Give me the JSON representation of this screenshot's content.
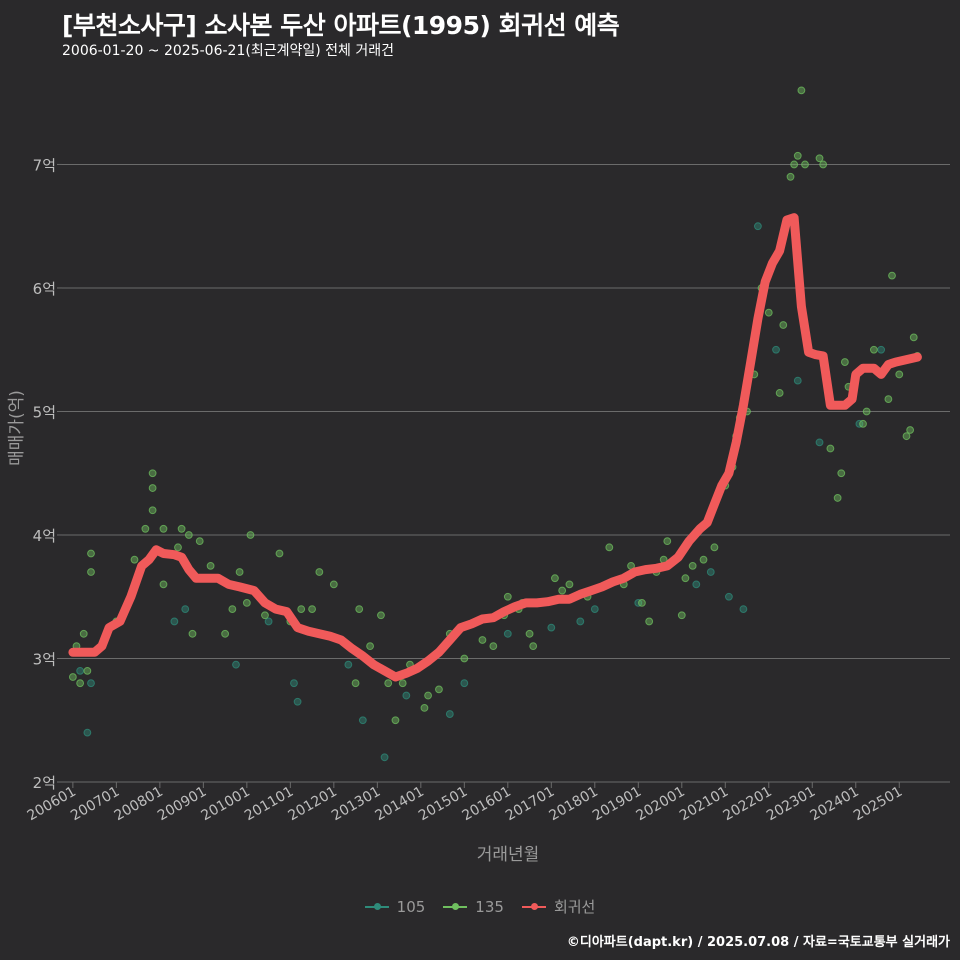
{
  "header": {
    "title": "[부천소사구] 소사본 두산 아파트(1995) 회귀선 예측",
    "subtitle": "2006-01-20 ~ 2025-06-21(최근계약일) 전체 거래건"
  },
  "footer": {
    "credit": "©디아파트(dapt.kr) / 2025.07.08 / 자료=국토교통부 실거래가"
  },
  "colors": {
    "background": "#2a292b",
    "grid": "#6b6b6b",
    "s105": "#2e8b7a",
    "s135": "#6fbf5f",
    "regression": "#f05a5a"
  },
  "chart_data": {
    "type": "scatter",
    "xlabel": "거래년월",
    "ylabel": "매매가(억)",
    "ylim": [
      2,
      7.7
    ],
    "xlim": [
      "2005-10",
      "2026-03"
    ],
    "y_ticks": [
      2,
      3,
      4,
      5,
      6,
      7
    ],
    "y_tick_labels": [
      "2억",
      "3억",
      "4억",
      "5억",
      "6억",
      "7억"
    ],
    "x_ticks": [
      "2006-01",
      "2007-01",
      "2008-01",
      "2009-01",
      "2010-01",
      "2011-01",
      "2012-01",
      "2013-01",
      "2014-01",
      "2015-01",
      "2016-01",
      "2017-01",
      "2018-01",
      "2019-01",
      "2020-01",
      "2021-01",
      "2022-01",
      "2023-01",
      "2024-01",
      "2025-01"
    ],
    "x_tick_labels": [
      "200601",
      "200701",
      "200801",
      "200901",
      "201001",
      "201101",
      "201201",
      "201301",
      "201401",
      "201501",
      "201601",
      "201701",
      "201801",
      "201901",
      "202001",
      "202101",
      "202201",
      "202301",
      "202401",
      "202501"
    ],
    "grid": true,
    "legend_position": "bottom",
    "series": [
      {
        "name": "105",
        "kind": "scatter",
        "points": [
          [
            "2006-03",
            2.9
          ],
          [
            "2006-05",
            2.4
          ],
          [
            "2006-06",
            2.8
          ],
          [
            "2008-05",
            3.3
          ],
          [
            "2008-08",
            3.4
          ],
          [
            "2009-10",
            2.95
          ],
          [
            "2010-07",
            3.3
          ],
          [
            "2011-03",
            2.65
          ],
          [
            "2011-02",
            2.8
          ],
          [
            "2012-05",
            2.95
          ],
          [
            "2012-09",
            2.5
          ],
          [
            "2013-03",
            2.2
          ],
          [
            "2013-09",
            2.7
          ],
          [
            "2014-09",
            2.55
          ],
          [
            "2015-01",
            2.8
          ],
          [
            "2016-01",
            3.2
          ],
          [
            "2017-01",
            3.25
          ],
          [
            "2017-09",
            3.3
          ],
          [
            "2018-01",
            3.4
          ],
          [
            "2019-01",
            3.45
          ],
          [
            "2020-05",
            3.6
          ],
          [
            "2020-09",
            3.7
          ],
          [
            "2021-02",
            3.5
          ],
          [
            "2021-06",
            3.4
          ],
          [
            "2021-10",
            6.5
          ],
          [
            "2022-03",
            5.5
          ],
          [
            "2022-09",
            5.25
          ],
          [
            "2023-03",
            4.75
          ],
          [
            "2024-02",
            4.9
          ],
          [
            "2024-08",
            5.5
          ]
        ]
      },
      {
        "name": "135",
        "kind": "scatter",
        "points": [
          [
            "2006-01",
            2.85
          ],
          [
            "2006-02",
            3.1
          ],
          [
            "2006-03",
            2.8
          ],
          [
            "2006-04",
            3.2
          ],
          [
            "2006-05",
            2.9
          ],
          [
            "2006-06",
            3.7
          ],
          [
            "2006-06",
            3.85
          ],
          [
            "2007-01",
            3.3
          ],
          [
            "2007-06",
            3.8
          ],
          [
            "2007-09",
            4.05
          ],
          [
            "2007-11",
            4.2
          ],
          [
            "2007-11",
            4.5
          ],
          [
            "2007-11",
            4.38
          ],
          [
            "2008-02",
            3.6
          ],
          [
            "2008-02",
            4.05
          ],
          [
            "2008-06",
            3.9
          ],
          [
            "2008-07",
            4.05
          ],
          [
            "2008-09",
            4.0
          ],
          [
            "2008-10",
            3.2
          ],
          [
            "2008-12",
            3.95
          ],
          [
            "2009-03",
            3.75
          ],
          [
            "2009-07",
            3.2
          ],
          [
            "2009-09",
            3.4
          ],
          [
            "2009-11",
            3.7
          ],
          [
            "2010-01",
            3.45
          ],
          [
            "2010-02",
            4.0
          ],
          [
            "2010-06",
            3.35
          ],
          [
            "2010-10",
            3.85
          ],
          [
            "2011-01",
            3.3
          ],
          [
            "2011-04",
            3.4
          ],
          [
            "2011-07",
            3.4
          ],
          [
            "2011-09",
            3.7
          ],
          [
            "2012-01",
            3.6
          ],
          [
            "2012-03",
            3.15
          ],
          [
            "2012-07",
            2.8
          ],
          [
            "2012-08",
            3.4
          ],
          [
            "2012-11",
            3.1
          ],
          [
            "2013-02",
            3.35
          ],
          [
            "2013-04",
            2.8
          ],
          [
            "2013-06",
            2.5
          ],
          [
            "2013-08",
            2.8
          ],
          [
            "2013-10",
            2.95
          ],
          [
            "2014-02",
            2.6
          ],
          [
            "2014-03",
            2.7
          ],
          [
            "2014-06",
            2.75
          ],
          [
            "2014-09",
            3.2
          ],
          [
            "2015-01",
            3.0
          ],
          [
            "2015-06",
            3.15
          ],
          [
            "2015-09",
            3.1
          ],
          [
            "2015-12",
            3.35
          ],
          [
            "2016-01",
            3.5
          ],
          [
            "2016-04",
            3.4
          ],
          [
            "2016-05",
            3.45
          ],
          [
            "2016-07",
            3.2
          ],
          [
            "2016-08",
            3.1
          ],
          [
            "2017-02",
            3.65
          ],
          [
            "2017-04",
            3.55
          ],
          [
            "2017-06",
            3.6
          ],
          [
            "2017-11",
            3.5
          ],
          [
            "2018-05",
            3.9
          ],
          [
            "2018-09",
            3.6
          ],
          [
            "2018-11",
            3.75
          ],
          [
            "2019-02",
            3.45
          ],
          [
            "2019-04",
            3.3
          ],
          [
            "2019-06",
            3.7
          ],
          [
            "2019-08",
            3.8
          ],
          [
            "2019-09",
            3.95
          ],
          [
            "2020-01",
            3.35
          ],
          [
            "2020-02",
            3.65
          ],
          [
            "2020-04",
            3.75
          ],
          [
            "2020-07",
            3.8
          ],
          [
            "2020-10",
            3.9
          ],
          [
            "2021-01",
            4.4
          ],
          [
            "2021-03",
            4.55
          ],
          [
            "2021-04",
            4.8
          ],
          [
            "2021-05",
            4.95
          ],
          [
            "2021-07",
            5.0
          ],
          [
            "2021-09",
            5.3
          ],
          [
            "2021-11",
            6.0
          ],
          [
            "2022-01",
            5.8
          ],
          [
            "2022-04",
            5.15
          ],
          [
            "2022-05",
            5.7
          ],
          [
            "2022-07",
            6.9
          ],
          [
            "2022-08",
            7.0
          ],
          [
            "2022-09",
            7.07
          ],
          [
            "2022-10",
            7.6
          ],
          [
            "2022-11",
            7.0
          ],
          [
            "2023-03",
            7.05
          ],
          [
            "2023-04",
            7.0
          ],
          [
            "2023-06",
            4.7
          ],
          [
            "2023-08",
            4.3
          ],
          [
            "2023-09",
            4.5
          ],
          [
            "2023-10",
            5.4
          ],
          [
            "2023-11",
            5.2
          ],
          [
            "2024-03",
            4.9
          ],
          [
            "2024-04",
            5.0
          ],
          [
            "2024-06",
            5.5
          ],
          [
            "2024-10",
            5.1
          ],
          [
            "2024-11",
            6.1
          ],
          [
            "2025-01",
            5.3
          ],
          [
            "2025-03",
            4.8
          ],
          [
            "2025-04",
            4.85
          ],
          [
            "2025-05",
            5.6
          ],
          [
            "2025-06",
            5.45
          ]
        ]
      },
      {
        "name": "회귀선",
        "kind": "line",
        "points": [
          [
            "2006-01",
            3.05
          ],
          [
            "2006-07",
            3.05
          ],
          [
            "2006-09",
            3.1
          ],
          [
            "2006-11",
            3.25
          ],
          [
            "2007-02",
            3.3
          ],
          [
            "2007-05",
            3.5
          ],
          [
            "2007-08",
            3.75
          ],
          [
            "2007-10",
            3.8
          ],
          [
            "2007-12",
            3.88
          ],
          [
            "2008-02",
            3.85
          ],
          [
            "2008-05",
            3.84
          ],
          [
            "2008-07",
            3.82
          ],
          [
            "2008-09",
            3.72
          ],
          [
            "2008-11",
            3.65
          ],
          [
            "2009-02",
            3.65
          ],
          [
            "2009-05",
            3.65
          ],
          [
            "2009-08",
            3.6
          ],
          [
            "2009-11",
            3.58
          ],
          [
            "2010-03",
            3.55
          ],
          [
            "2010-06",
            3.45
          ],
          [
            "2010-09",
            3.4
          ],
          [
            "2010-12",
            3.38
          ],
          [
            "2011-03",
            3.25
          ],
          [
            "2011-06",
            3.22
          ],
          [
            "2011-09",
            3.2
          ],
          [
            "2011-12",
            3.18
          ],
          [
            "2012-03",
            3.15
          ],
          [
            "2012-06",
            3.08
          ],
          [
            "2012-09",
            3.02
          ],
          [
            "2012-12",
            2.95
          ],
          [
            "2013-03",
            2.9
          ],
          [
            "2013-06",
            2.85
          ],
          [
            "2013-09",
            2.88
          ],
          [
            "2013-12",
            2.92
          ],
          [
            "2014-03",
            2.98
          ],
          [
            "2014-06",
            3.05
          ],
          [
            "2014-09",
            3.15
          ],
          [
            "2014-12",
            3.25
          ],
          [
            "2015-03",
            3.28
          ],
          [
            "2015-06",
            3.32
          ],
          [
            "2015-09",
            3.33
          ],
          [
            "2015-12",
            3.38
          ],
          [
            "2016-03",
            3.42
          ],
          [
            "2016-06",
            3.45
          ],
          [
            "2016-09",
            3.45
          ],
          [
            "2016-12",
            3.46
          ],
          [
            "2017-03",
            3.48
          ],
          [
            "2017-06",
            3.48
          ],
          [
            "2017-09",
            3.52
          ],
          [
            "2017-12",
            3.55
          ],
          [
            "2018-03",
            3.58
          ],
          [
            "2018-06",
            3.62
          ],
          [
            "2018-09",
            3.65
          ],
          [
            "2018-12",
            3.7
          ],
          [
            "2019-03",
            3.72
          ],
          [
            "2019-06",
            3.73
          ],
          [
            "2019-09",
            3.75
          ],
          [
            "2019-12",
            3.82
          ],
          [
            "2020-03",
            3.95
          ],
          [
            "2020-06",
            4.05
          ],
          [
            "2020-08",
            4.1
          ],
          [
            "2020-10",
            4.25
          ],
          [
            "2020-12",
            4.4
          ],
          [
            "2021-02",
            4.5
          ],
          [
            "2021-04",
            4.75
          ],
          [
            "2021-06",
            5.05
          ],
          [
            "2021-08",
            5.4
          ],
          [
            "2021-10",
            5.75
          ],
          [
            "2021-12",
            6.05
          ],
          [
            "2022-02",
            6.2
          ],
          [
            "2022-04",
            6.3
          ],
          [
            "2022-06",
            6.55
          ],
          [
            "2022-08",
            6.57
          ],
          [
            "2022-10",
            5.85
          ],
          [
            "2022-12",
            5.48
          ],
          [
            "2023-02",
            5.46
          ],
          [
            "2023-04",
            5.45
          ],
          [
            "2023-06",
            5.05
          ],
          [
            "2023-08",
            5.05
          ],
          [
            "2023-10",
            5.05
          ],
          [
            "2023-12",
            5.1
          ],
          [
            "2024-01",
            5.3
          ],
          [
            "2024-03",
            5.35
          ],
          [
            "2024-06",
            5.35
          ],
          [
            "2024-08",
            5.3
          ],
          [
            "2024-10",
            5.38
          ],
          [
            "2024-12",
            5.4
          ],
          [
            "2025-03",
            5.42
          ],
          [
            "2025-06",
            5.44
          ]
        ]
      }
    ]
  }
}
